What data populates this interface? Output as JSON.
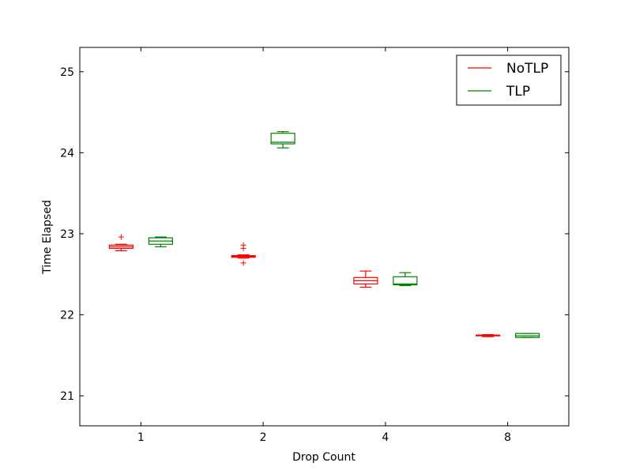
{
  "chart_data": {
    "type": "box",
    "xlabel": "Drop Count",
    "ylabel": "Time Elapsed",
    "categories": [
      "1",
      "2",
      "4",
      "8"
    ],
    "ylim": [
      20.63,
      25.3
    ],
    "yticks": [
      21,
      22,
      23,
      24,
      25
    ],
    "grid": false,
    "legend_position": "top-right",
    "series": [
      {
        "name": "NoTLP",
        "color": "#ff0000",
        "boxes": [
          {
            "whislo": 22.79,
            "q1": 22.82,
            "med": 22.84,
            "q3": 22.86,
            "whishi": 22.87,
            "fliers": [
              22.96
            ]
          },
          {
            "whislo": 22.7,
            "q1": 22.71,
            "med": 22.72,
            "q3": 22.73,
            "whishi": 22.74,
            "fliers": [
              22.86,
              22.82,
              22.64
            ]
          },
          {
            "whislo": 22.34,
            "q1": 22.38,
            "med": 22.42,
            "q3": 22.46,
            "whishi": 22.54,
            "fliers": []
          },
          {
            "whislo": 21.73,
            "q1": 21.74,
            "med": 21.745,
            "q3": 21.75,
            "whishi": 21.755,
            "fliers": []
          }
        ]
      },
      {
        "name": "TLP",
        "color": "#008000",
        "boxes": [
          {
            "whislo": 22.84,
            "q1": 22.87,
            "med": 22.91,
            "q3": 22.95,
            "whishi": 22.96,
            "fliers": []
          },
          {
            "whislo": 24.06,
            "q1": 24.11,
            "med": 24.13,
            "q3": 24.24,
            "whishi": 24.26,
            "fliers": []
          },
          {
            "whislo": 22.36,
            "q1": 22.37,
            "med": 22.38,
            "q3": 22.47,
            "whishi": 22.52,
            "fliers": []
          },
          {
            "whislo": 21.72,
            "q1": 21.72,
            "med": 21.74,
            "q3": 21.77,
            "whishi": 21.77,
            "fliers": []
          }
        ]
      }
    ]
  }
}
